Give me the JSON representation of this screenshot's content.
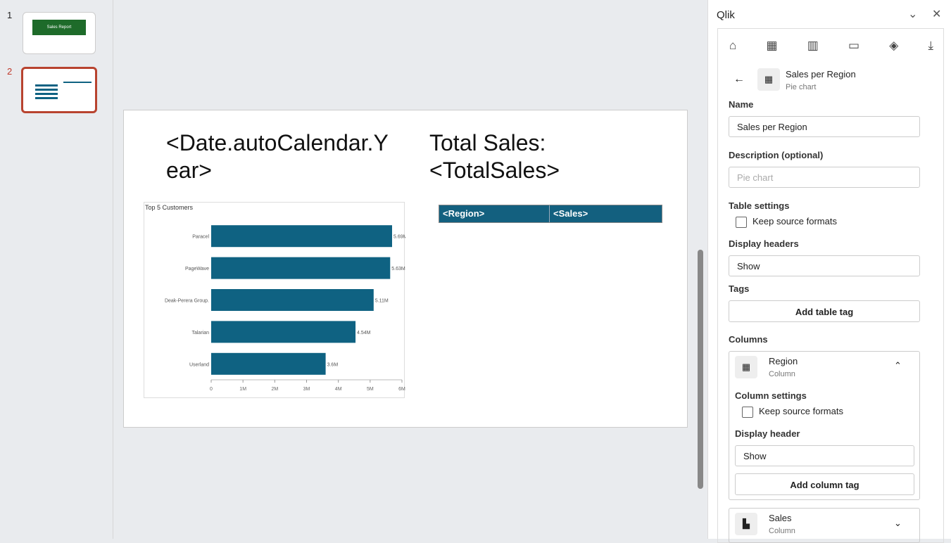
{
  "slides": [
    {
      "number": "1",
      "title": "Sales Report"
    },
    {
      "number": "2"
    }
  ],
  "slide": {
    "title_left": "<Date.autoCalendar.Year>",
    "title_right": "Total Sales: <TotalSales>",
    "table_headers": [
      "<Region>",
      "<Sales>"
    ]
  },
  "chart_data": {
    "type": "bar",
    "orientation": "horizontal",
    "title": "Top 5 Customers",
    "categories": [
      "Paracel",
      "PageWave",
      "Deak-Perera Group.",
      "Talarian",
      "Userland"
    ],
    "values": [
      5690000,
      5630000,
      5110000,
      4540000,
      3600000
    ],
    "value_labels": [
      "5.69M",
      "5.63M",
      "5.11M",
      "4.54M",
      "3.6M"
    ],
    "color": "#0f6282",
    "xlim": [
      0,
      6000000
    ],
    "xticks": [
      0,
      {
        "value": 1000000,
        "label": "1M"
      },
      {
        "value": 2000000,
        "label": "2M"
      },
      {
        "value": 3000000,
        "label": "3M"
      },
      {
        "value": 4000000,
        "label": "4M"
      },
      {
        "value": 5000000,
        "label": "5M"
      },
      {
        "value": 6000000,
        "label": "6M"
      }
    ]
  },
  "panel": {
    "app_title": "Qlik",
    "object_name": "Sales per Region",
    "object_type": "Pie chart",
    "name_label": "Name",
    "name_value": "Sales per Region",
    "description_label": "Description (optional)",
    "description_placeholder": "Pie chart",
    "table_settings": "Table settings",
    "keep_source_formats": "Keep source formats",
    "display_headers": "Display headers",
    "display_headers_value": "Show",
    "tags": "Tags",
    "add_table_tag": "Add table tag",
    "columns_label": "Columns",
    "columns": [
      {
        "name": "Region",
        "kind": "Column",
        "settings_label": "Column settings",
        "keep": "Keep source formats",
        "display_header": "Display header",
        "display_value": "Show",
        "add_tag": "Add column tag"
      },
      {
        "name": "Sales",
        "kind": "Column"
      }
    ]
  }
}
